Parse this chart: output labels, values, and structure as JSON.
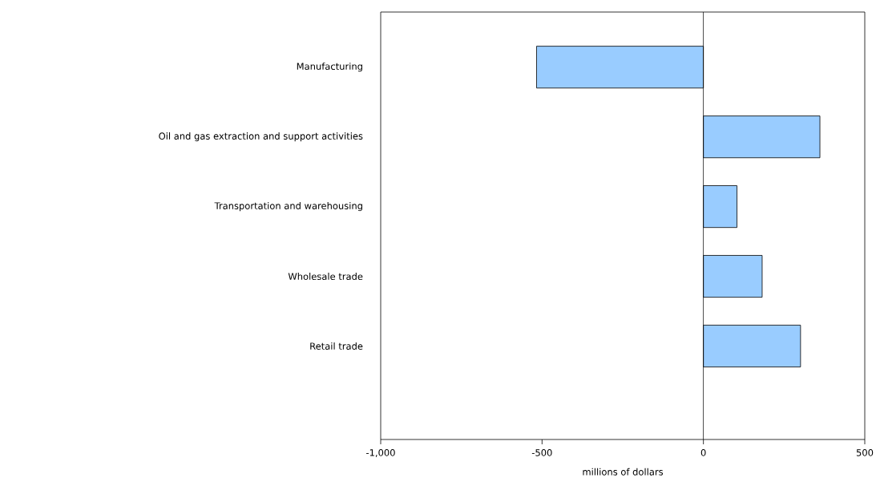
{
  "chart_data": {
    "type": "bar",
    "orientation": "horizontal",
    "xlabel": "millions of dollars",
    "categories": [
      "Manufacturing",
      "Oil and gas extraction and support activities",
      "Transportation and warehousing",
      "Wholesale trade",
      "Retail trade"
    ],
    "values": [
      -517,
      361,
      104,
      182,
      301
    ],
    "color": "#99ccff",
    "xlim": [
      -1000,
      500
    ],
    "xticks": [
      {
        "value": -1000,
        "label": "-1,000"
      },
      {
        "value": -500,
        "label": "-500"
      },
      0,
      500
    ],
    "ref_lines": [
      {
        "axis": "x",
        "value": 0
      }
    ],
    "grid": false
  }
}
